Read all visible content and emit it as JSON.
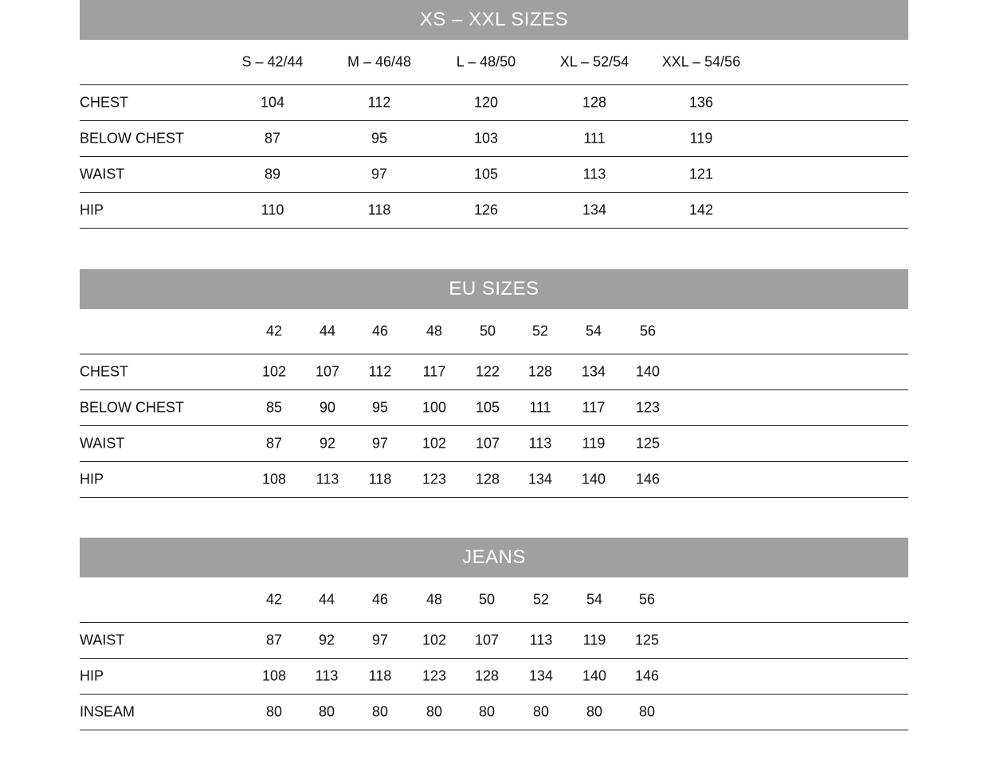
{
  "sections": [
    {
      "title": "XS – XXL SIZES",
      "columns": [
        "S – 42/44",
        "M – 46/48",
        "L – 48/50",
        "XL – 52/54",
        "XXL – 54/56"
      ],
      "rows": [
        {
          "label": "CHEST",
          "values": [
            "104",
            "112",
            "120",
            "128",
            "136"
          ]
        },
        {
          "label": "BELOW CHEST",
          "values": [
            "87",
            "95",
            "103",
            "111",
            "119"
          ]
        },
        {
          "label": "WAIST",
          "values": [
            "89",
            "97",
            "105",
            "113",
            "121"
          ]
        },
        {
          "label": "HIP",
          "values": [
            "110",
            "118",
            "126",
            "134",
            "142"
          ]
        }
      ]
    },
    {
      "title": "EU SIZES",
      "columns": [
        "42",
        "44",
        "46",
        "48",
        "50",
        "52",
        "54",
        "56"
      ],
      "rows": [
        {
          "label": "CHEST",
          "values": [
            "102",
            "107",
            "112",
            "117",
            "122",
            "128",
            "134",
            "140"
          ]
        },
        {
          "label": "BELOW CHEST",
          "values": [
            "85",
            "90",
            "95",
            "100",
            "105",
            "111",
            "117",
            "123"
          ]
        },
        {
          "label": "WAIST",
          "values": [
            "87",
            "92",
            "97",
            "102",
            "107",
            "113",
            "119",
            "125"
          ]
        },
        {
          "label": "HIP",
          "values": [
            "108",
            "113",
            "118",
            "123",
            "128",
            "134",
            "140",
            "146"
          ]
        }
      ]
    },
    {
      "title": "JEANS",
      "columns": [
        "42",
        "44",
        "46",
        "48",
        "50",
        "52",
        "54",
        "56"
      ],
      "rows": [
        {
          "label": "WAIST",
          "values": [
            "87",
            "92",
            "97",
            "102",
            "107",
            "113",
            "119",
            "125"
          ]
        },
        {
          "label": "HIP",
          "values": [
            "108",
            "113",
            "118",
            "123",
            "128",
            "134",
            "140",
            "146"
          ]
        },
        {
          "label": "INSEAM",
          "values": [
            "80",
            "80",
            "80",
            "80",
            "80",
            "80",
            "80",
            "80"
          ]
        }
      ]
    }
  ],
  "colors": {
    "banner": "#a0a0a0",
    "banner_text": "#ffffff"
  }
}
